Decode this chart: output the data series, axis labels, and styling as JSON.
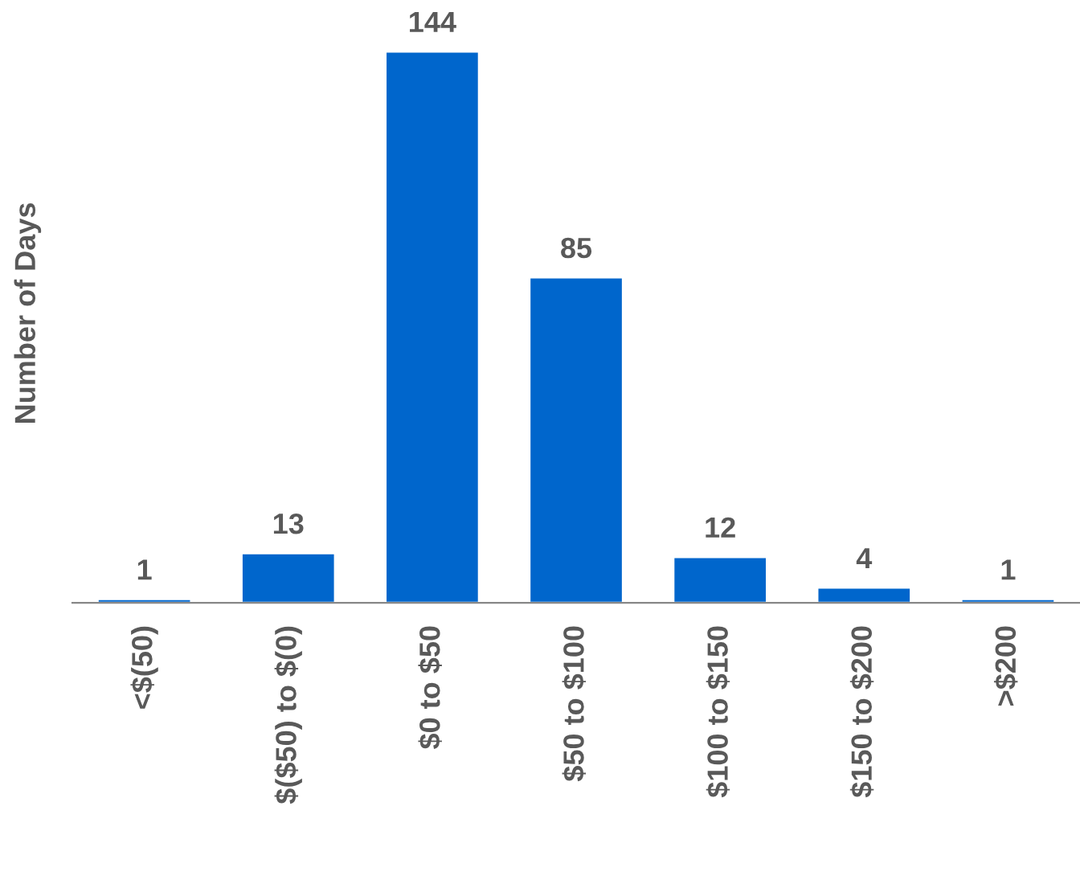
{
  "chart_data": {
    "type": "bar",
    "ylabel": "Number of Days",
    "categories": [
      "<$(50)",
      "$($50) to $(0)",
      "$0 to $50",
      "$50 to $100",
      "$100 to $150",
      "$150 to $200",
      ">$200"
    ],
    "values": [
      1,
      13,
      144,
      85,
      12,
      4,
      1
    ],
    "color": "#0066cc",
    "data_labels": true,
    "grid": false,
    "legend": false,
    "tick_labels": "x"
  }
}
